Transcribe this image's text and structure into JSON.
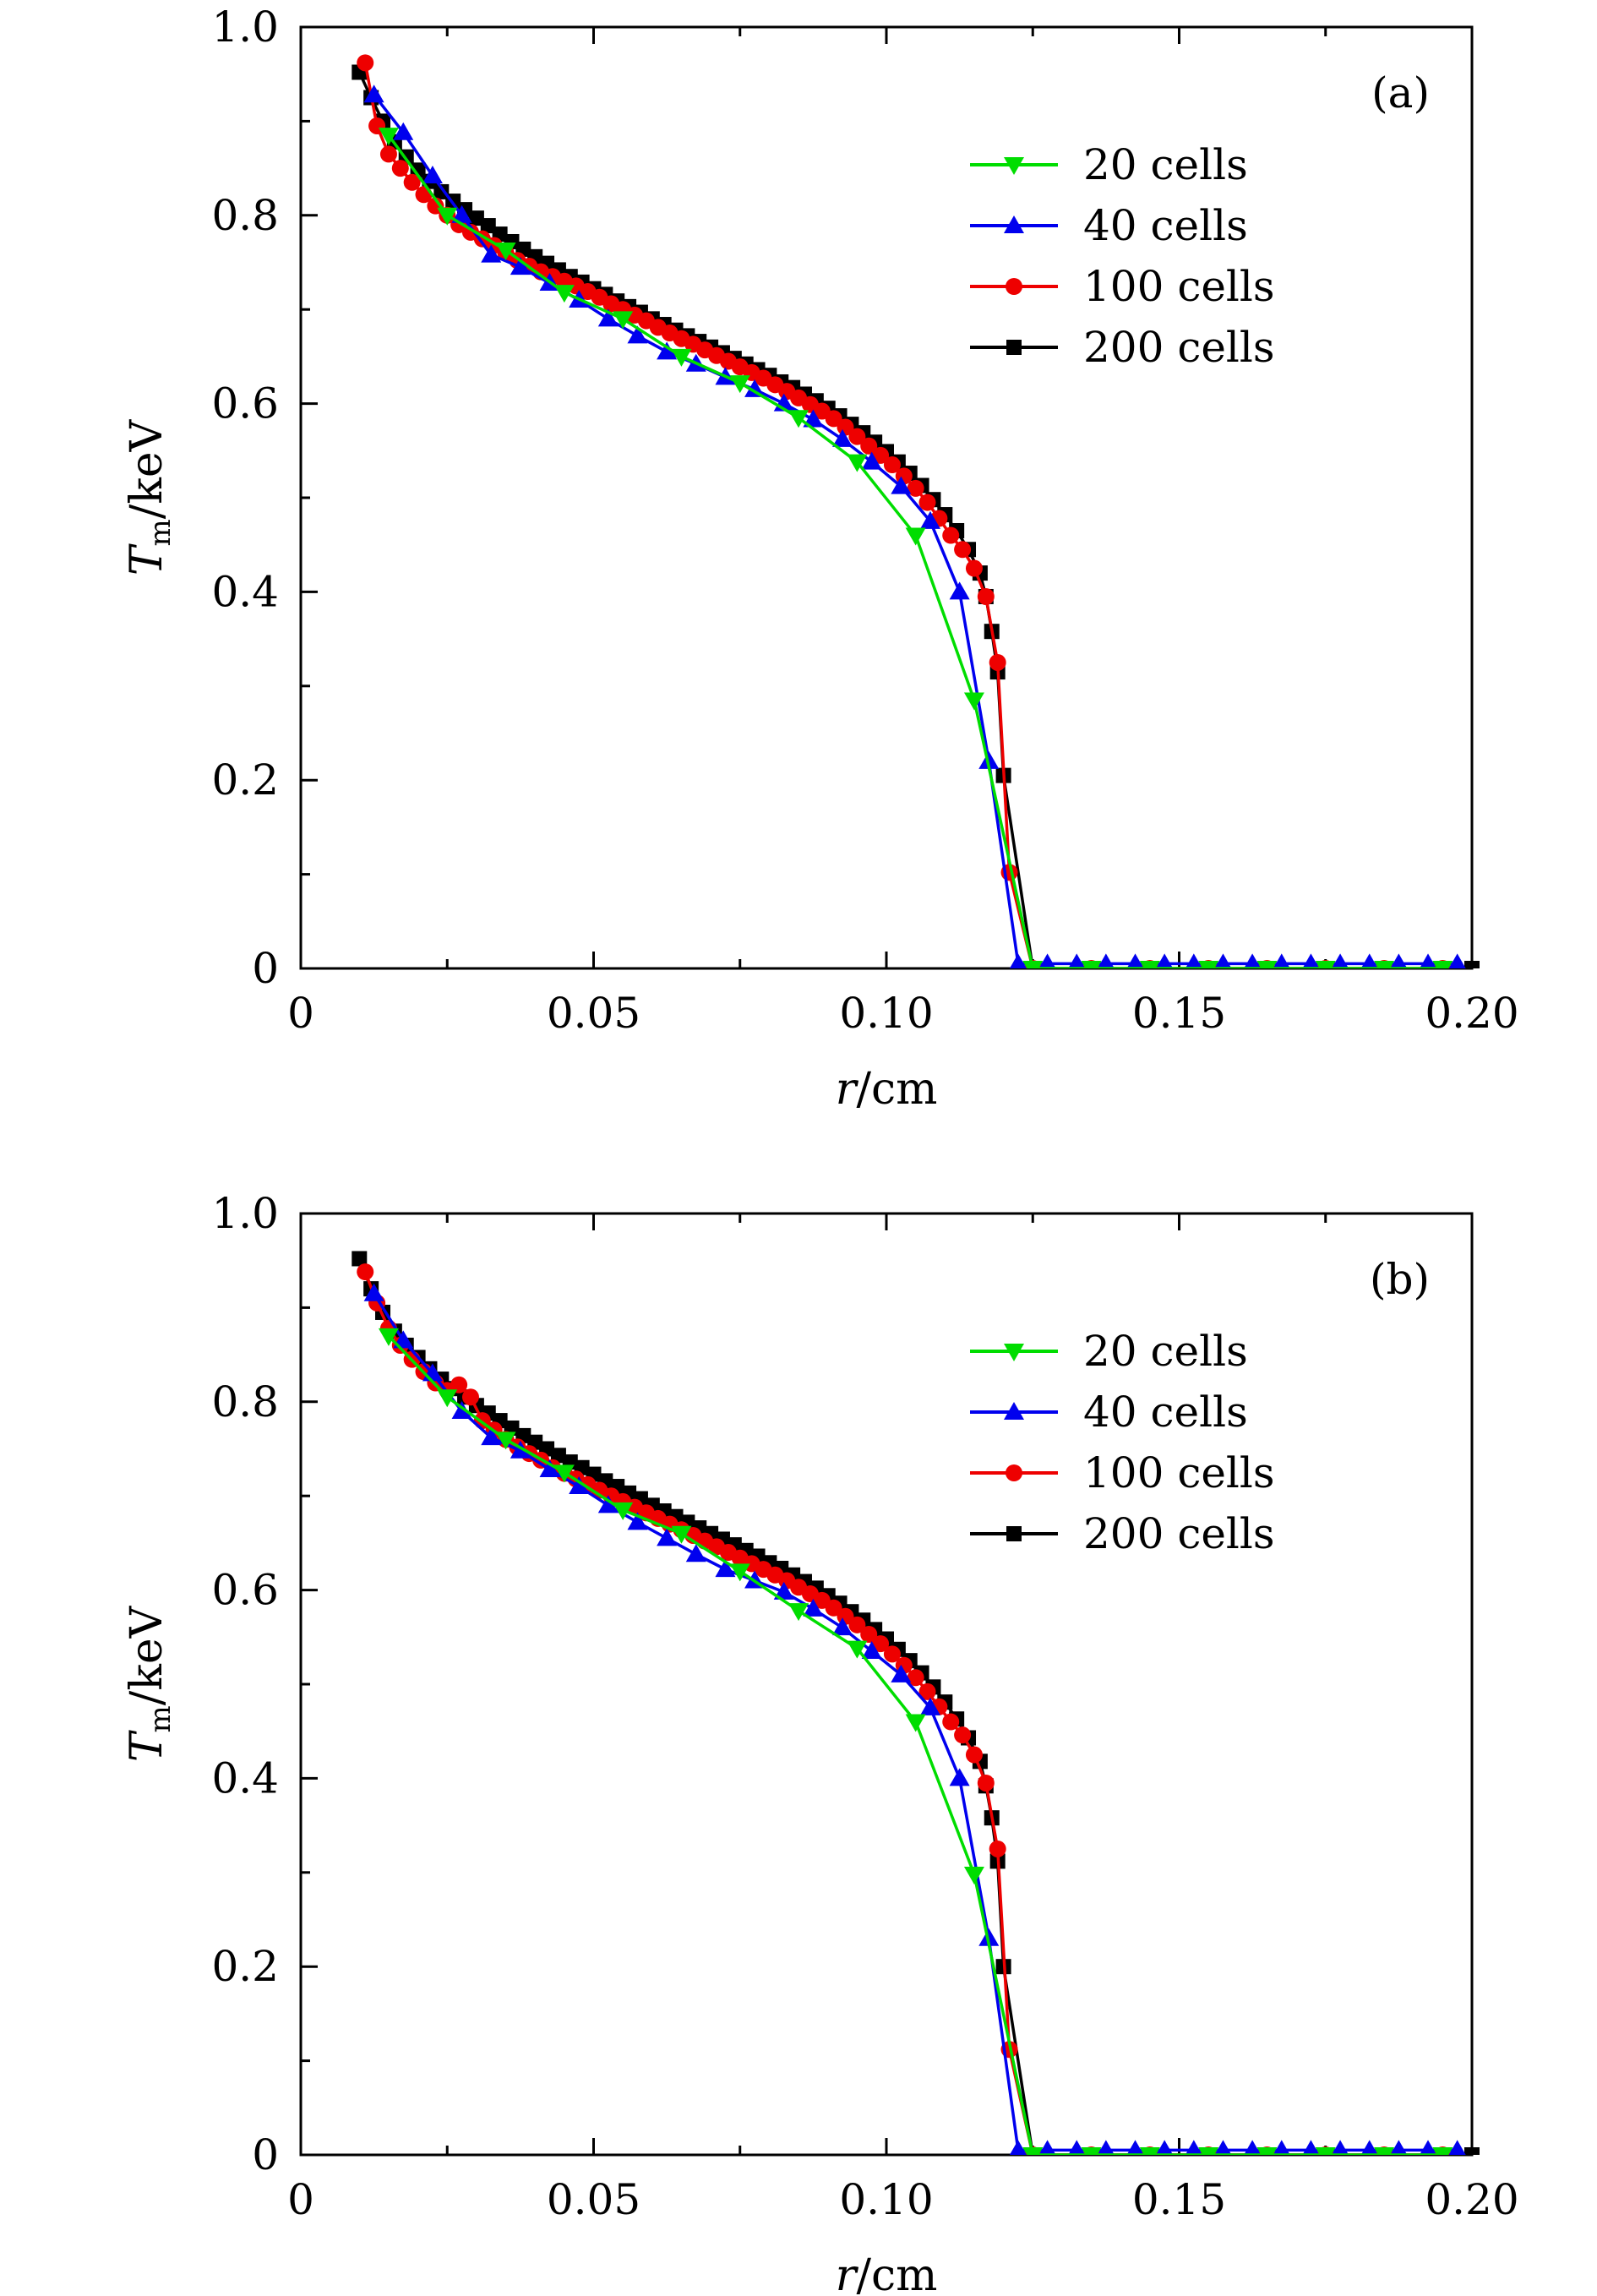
{
  "figure": {
    "panels": [
      "a",
      "b"
    ]
  },
  "chart_data": [
    {
      "type": "line",
      "panel_label": "(a)",
      "xlabel": "r/cm",
      "ylabel": "T_m/keV",
      "ylabel_parts": {
        "symbol": "T",
        "subscript": "m",
        "unit": "/keV"
      },
      "xlabel_parts": {
        "symbol": "r",
        "unit": "/cm"
      },
      "xlim": [
        0,
        0.2
      ],
      "ylim": [
        0,
        1.0
      ],
      "x_ticks": [
        0,
        0.05,
        0.1,
        0.15,
        0.2
      ],
      "x_tick_labels": [
        "0",
        "0.05",
        "0.10",
        "0.15",
        "0.20"
      ],
      "y_ticks": [
        0,
        0.2,
        0.4,
        0.6,
        0.8,
        1.0
      ],
      "y_tick_labels": [
        "0",
        "0.2",
        "0.4",
        "0.6",
        "0.8",
        "1.0"
      ],
      "grid": false,
      "legend_position": "top-right",
      "series": [
        {
          "name": "20 cells",
          "color": "#00dd00",
          "marker": "triangle-down",
          "n": 20,
          "x": [
            0.015,
            0.025,
            0.035,
            0.045,
            0.055,
            0.065,
            0.075,
            0.085,
            0.095,
            0.105,
            0.115,
            0.125,
            0.135,
            0.145,
            0.155,
            0.165,
            0.175,
            0.185,
            0.195
          ],
          "y": [
            0.885,
            0.8,
            0.763,
            0.718,
            0.69,
            0.65,
            0.622,
            0.585,
            0.538,
            0.46,
            0.285,
            0.0,
            0,
            0,
            0,
            0,
            0,
            0,
            0
          ]
        },
        {
          "name": "40 cells",
          "color": "#0000ee",
          "marker": "triangle-up",
          "n": 40,
          "x": [
            0.0125,
            0.0175,
            0.0225,
            0.0275,
            0.0325,
            0.0375,
            0.0425,
            0.0475,
            0.0525,
            0.0575,
            0.0625,
            0.0675,
            0.0725,
            0.0775,
            0.0825,
            0.0875,
            0.0925,
            0.0975,
            0.1025,
            0.1075,
            0.1125,
            0.1175,
            0.1225,
            0.1275,
            0.1325,
            0.1375,
            0.1425,
            0.1475,
            0.1525,
            0.1575,
            0.1625,
            0.1675,
            0.1725,
            0.1775,
            0.1825,
            0.1875,
            0.1925,
            0.1975
          ],
          "y": [
            0.928,
            0.888,
            0.842,
            0.8,
            0.758,
            0.745,
            0.728,
            0.71,
            0.69,
            0.672,
            0.655,
            0.642,
            0.628,
            0.615,
            0.6,
            0.583,
            0.562,
            0.538,
            0.512,
            0.475,
            0.4,
            0.22,
            0.005,
            0.005,
            0.005,
            0.005,
            0.005,
            0.005,
            0.005,
            0.005,
            0.005,
            0.005,
            0.005,
            0.005,
            0.005,
            0.005,
            0.005,
            0.005
          ]
        },
        {
          "name": "100 cells",
          "color": "#ee0000",
          "marker": "circle",
          "n": 100,
          "x": [
            0.011,
            0.013,
            0.015,
            0.017,
            0.019,
            0.021,
            0.023,
            0.025,
            0.027,
            0.029,
            0.031,
            0.033,
            0.035,
            0.037,
            0.039,
            0.041,
            0.043,
            0.045,
            0.047,
            0.049,
            0.051,
            0.053,
            0.055,
            0.057,
            0.059,
            0.061,
            0.063,
            0.065,
            0.067,
            0.069,
            0.071,
            0.073,
            0.075,
            0.077,
            0.079,
            0.081,
            0.083,
            0.085,
            0.087,
            0.089,
            0.091,
            0.093,
            0.095,
            0.097,
            0.099,
            0.101,
            0.103,
            0.105,
            0.107,
            0.109,
            0.111,
            0.113,
            0.115,
            0.117,
            0.119,
            0.121,
            0.125,
            0.135,
            0.145,
            0.155,
            0.165,
            0.175,
            0.185,
            0.195
          ],
          "y": [
            0.962,
            0.895,
            0.865,
            0.85,
            0.835,
            0.822,
            0.81,
            0.8,
            0.79,
            0.782,
            0.775,
            0.768,
            0.76,
            0.752,
            0.746,
            0.74,
            0.735,
            0.73,
            0.725,
            0.719,
            0.713,
            0.706,
            0.7,
            0.694,
            0.688,
            0.681,
            0.675,
            0.669,
            0.663,
            0.657,
            0.651,
            0.645,
            0.639,
            0.633,
            0.627,
            0.62,
            0.613,
            0.606,
            0.599,
            0.592,
            0.584,
            0.575,
            0.565,
            0.555,
            0.545,
            0.535,
            0.523,
            0.51,
            0.495,
            0.478,
            0.46,
            0.445,
            0.425,
            0.395,
            0.325,
            0.102,
            0.0,
            0,
            0,
            0,
            0,
            0,
            0,
            0
          ]
        },
        {
          "name": "200 cells",
          "color": "#000000",
          "marker": "square",
          "n": 200,
          "x": [
            0.01,
            0.012,
            0.014,
            0.016,
            0.018,
            0.02,
            0.022,
            0.024,
            0.026,
            0.028,
            0.03,
            0.032,
            0.034,
            0.036,
            0.038,
            0.04,
            0.042,
            0.044,
            0.046,
            0.048,
            0.05,
            0.052,
            0.054,
            0.056,
            0.058,
            0.06,
            0.062,
            0.064,
            0.066,
            0.068,
            0.07,
            0.072,
            0.074,
            0.076,
            0.078,
            0.08,
            0.082,
            0.084,
            0.086,
            0.088,
            0.09,
            0.092,
            0.094,
            0.096,
            0.098,
            0.1,
            0.102,
            0.104,
            0.106,
            0.108,
            0.11,
            0.112,
            0.114,
            0.116,
            0.117,
            0.118,
            0.119,
            0.12,
            0.125,
            0.135,
            0.145,
            0.155,
            0.165,
            0.175,
            0.185,
            0.195,
            0.2
          ],
          "y": [
            0.952,
            0.925,
            0.9,
            0.878,
            0.862,
            0.848,
            0.836,
            0.825,
            0.815,
            0.806,
            0.797,
            0.789,
            0.78,
            0.772,
            0.764,
            0.756,
            0.749,
            0.742,
            0.735,
            0.729,
            0.722,
            0.716,
            0.709,
            0.703,
            0.697,
            0.69,
            0.684,
            0.678,
            0.672,
            0.666,
            0.66,
            0.654,
            0.648,
            0.642,
            0.636,
            0.63,
            0.623,
            0.617,
            0.61,
            0.603,
            0.595,
            0.587,
            0.578,
            0.569,
            0.559,
            0.549,
            0.538,
            0.526,
            0.513,
            0.498,
            0.482,
            0.465,
            0.445,
            0.42,
            0.395,
            0.358,
            0.315,
            0.205,
            0,
            0,
            0,
            0,
            0,
            0,
            0,
            0,
            0
          ]
        }
      ]
    },
    {
      "type": "line",
      "panel_label": "(b)",
      "xlabel": "r/cm",
      "ylabel": "T_m/keV",
      "ylabel_parts": {
        "symbol": "T",
        "subscript": "m",
        "unit": "/keV"
      },
      "xlabel_parts": {
        "symbol": "r",
        "unit": "/cm"
      },
      "xlim": [
        0,
        0.2
      ],
      "ylim": [
        0,
        1.0
      ],
      "x_ticks": [
        0,
        0.05,
        0.1,
        0.15,
        0.2
      ],
      "x_tick_labels": [
        "0",
        "0.05",
        "0.10",
        "0.15",
        "0.20"
      ],
      "y_ticks": [
        0,
        0.2,
        0.4,
        0.6,
        0.8,
        1.0
      ],
      "y_tick_labels": [
        "0",
        "0.2",
        "0.4",
        "0.6",
        "0.8",
        "1.0"
      ],
      "grid": false,
      "legend_position": "top-right",
      "series": [
        {
          "name": "20 cells",
          "color": "#00dd00",
          "marker": "triangle-down",
          "x": [
            0.015,
            0.025,
            0.035,
            0.045,
            0.055,
            0.065,
            0.075,
            0.085,
            0.095,
            0.105,
            0.115,
            0.125,
            0.135,
            0.145,
            0.155,
            0.165,
            0.175,
            0.185,
            0.195
          ],
          "y": [
            0.87,
            0.805,
            0.76,
            0.725,
            0.685,
            0.66,
            0.62,
            0.578,
            0.538,
            0.46,
            0.298,
            0.0,
            0,
            0,
            0,
            0,
            0,
            0,
            0
          ]
        },
        {
          "name": "40 cells",
          "color": "#0000ee",
          "marker": "triangle-up",
          "x": [
            0.0125,
            0.0175,
            0.0225,
            0.0275,
            0.0325,
            0.0375,
            0.0425,
            0.0475,
            0.0525,
            0.0575,
            0.0625,
            0.0675,
            0.0725,
            0.0775,
            0.0825,
            0.0875,
            0.0925,
            0.0975,
            0.1025,
            0.1075,
            0.1125,
            0.1175,
            0.1225,
            0.1275,
            0.1325,
            0.1375,
            0.1425,
            0.1475,
            0.1525,
            0.1575,
            0.1625,
            0.1675,
            0.1725,
            0.1775,
            0.1825,
            0.1875,
            0.1925,
            0.1975
          ],
          "y": [
            0.915,
            0.865,
            0.83,
            0.79,
            0.762,
            0.748,
            0.728,
            0.71,
            0.69,
            0.672,
            0.655,
            0.638,
            0.622,
            0.61,
            0.598,
            0.58,
            0.56,
            0.535,
            0.51,
            0.475,
            0.4,
            0.23,
            0.005,
            0.005,
            0.005,
            0.005,
            0.005,
            0.005,
            0.005,
            0.005,
            0.005,
            0.005,
            0.005,
            0.005,
            0.005,
            0.005,
            0.005,
            0.005
          ]
        },
        {
          "name": "100 cells",
          "color": "#ee0000",
          "marker": "circle",
          "x": [
            0.011,
            0.013,
            0.015,
            0.017,
            0.019,
            0.021,
            0.023,
            0.025,
            0.027,
            0.029,
            0.031,
            0.033,
            0.035,
            0.037,
            0.039,
            0.041,
            0.043,
            0.045,
            0.047,
            0.049,
            0.051,
            0.053,
            0.055,
            0.057,
            0.059,
            0.061,
            0.063,
            0.065,
            0.067,
            0.069,
            0.071,
            0.073,
            0.075,
            0.077,
            0.079,
            0.081,
            0.083,
            0.085,
            0.087,
            0.089,
            0.091,
            0.093,
            0.095,
            0.097,
            0.099,
            0.101,
            0.103,
            0.105,
            0.107,
            0.109,
            0.111,
            0.113,
            0.115,
            0.117,
            0.119,
            0.121,
            0.125,
            0.135,
            0.145,
            0.155,
            0.165,
            0.175,
            0.185,
            0.195
          ],
          "y": [
            0.938,
            0.905,
            0.878,
            0.86,
            0.845,
            0.832,
            0.82,
            0.812,
            0.818,
            0.805,
            0.78,
            0.77,
            0.76,
            0.752,
            0.745,
            0.738,
            0.73,
            0.724,
            0.718,
            0.712,
            0.706,
            0.7,
            0.694,
            0.688,
            0.682,
            0.676,
            0.67,
            0.664,
            0.658,
            0.652,
            0.646,
            0.64,
            0.634,
            0.628,
            0.622,
            0.616,
            0.61,
            0.603,
            0.596,
            0.589,
            0.581,
            0.572,
            0.563,
            0.553,
            0.543,
            0.532,
            0.52,
            0.507,
            0.492,
            0.476,
            0.46,
            0.446,
            0.425,
            0.395,
            0.325,
            0.112,
            0.0,
            0,
            0,
            0,
            0,
            0,
            0,
            0
          ]
        },
        {
          "name": "200 cells",
          "color": "#000000",
          "marker": "square",
          "x": [
            0.01,
            0.012,
            0.014,
            0.016,
            0.018,
            0.02,
            0.022,
            0.024,
            0.026,
            0.028,
            0.03,
            0.032,
            0.034,
            0.036,
            0.038,
            0.04,
            0.042,
            0.044,
            0.046,
            0.048,
            0.05,
            0.052,
            0.054,
            0.056,
            0.058,
            0.06,
            0.062,
            0.064,
            0.066,
            0.068,
            0.07,
            0.072,
            0.074,
            0.076,
            0.078,
            0.08,
            0.082,
            0.084,
            0.086,
            0.088,
            0.09,
            0.092,
            0.094,
            0.096,
            0.098,
            0.1,
            0.102,
            0.104,
            0.106,
            0.108,
            0.11,
            0.112,
            0.114,
            0.116,
            0.117,
            0.118,
            0.119,
            0.12,
            0.125,
            0.135,
            0.145,
            0.155,
            0.165,
            0.175,
            0.185,
            0.195,
            0.2
          ],
          "y": [
            0.952,
            0.92,
            0.895,
            0.875,
            0.86,
            0.847,
            0.835,
            0.824,
            0.814,
            0.805,
            0.796,
            0.788,
            0.78,
            0.772,
            0.764,
            0.757,
            0.75,
            0.743,
            0.736,
            0.73,
            0.723,
            0.716,
            0.71,
            0.703,
            0.697,
            0.69,
            0.684,
            0.678,
            0.672,
            0.666,
            0.66,
            0.654,
            0.648,
            0.642,
            0.636,
            0.629,
            0.623,
            0.616,
            0.609,
            0.602,
            0.594,
            0.586,
            0.577,
            0.568,
            0.558,
            0.548,
            0.537,
            0.525,
            0.512,
            0.497,
            0.481,
            0.463,
            0.443,
            0.418,
            0.392,
            0.358,
            0.312,
            0.2,
            0,
            0,
            0,
            0,
            0,
            0,
            0,
            0,
            0
          ]
        }
      ]
    }
  ]
}
